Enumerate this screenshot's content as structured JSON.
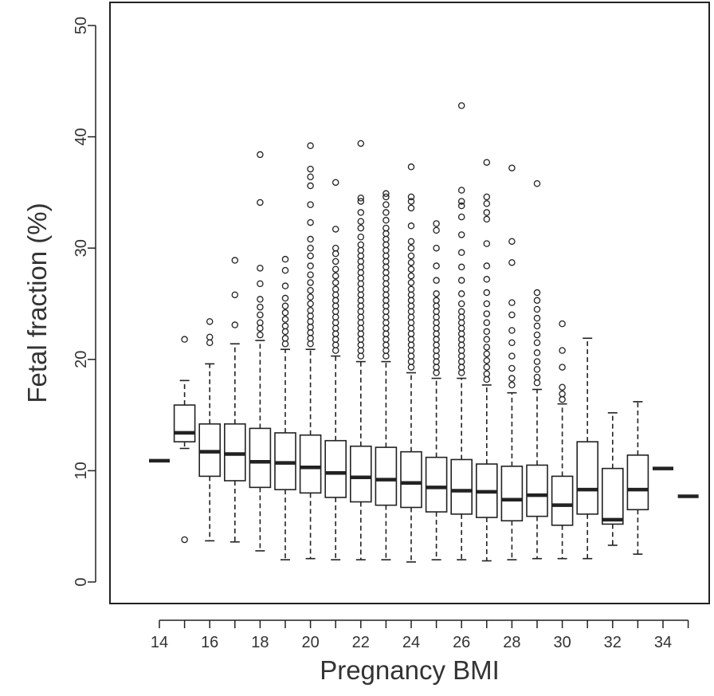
{
  "chart_data": {
    "type": "boxplot",
    "title": "",
    "xlabel": "Pregnancy BMI",
    "ylabel": "Fetal fraction (%)",
    "ylim": [
      0,
      50
    ],
    "yticks": [
      "0",
      "10",
      "20",
      "30",
      "40",
      "50"
    ],
    "xticks": [
      "14",
      "16",
      "18",
      "20",
      "22",
      "24",
      "26",
      "28",
      "30",
      "32",
      "34"
    ],
    "grid": false,
    "colors": {
      "line": "#222222",
      "frame": "#222222",
      "background": "#ffffff"
    },
    "boxes": [
      {
        "bmi": 14,
        "q1": 10.9,
        "median": 10.9,
        "q3": 10.9,
        "whisker_low": 10.9,
        "whisker_high": 10.9,
        "outliers": []
      },
      {
        "bmi": 15,
        "q1": 12.6,
        "median": 13.4,
        "q3": 15.9,
        "whisker_low": 12.0,
        "whisker_high": 18.1,
        "outliers": [
          21.8,
          3.8
        ]
      },
      {
        "bmi": 16,
        "q1": 9.5,
        "median": 11.7,
        "q3": 14.2,
        "whisker_low": 3.7,
        "whisker_high": 19.6,
        "outliers": [
          21.5,
          22.0,
          23.4
        ]
      },
      {
        "bmi": 17,
        "q1": 9.1,
        "median": 11.5,
        "q3": 14.2,
        "whisker_low": 3.6,
        "whisker_high": 21.4,
        "outliers": [
          23.1,
          25.8,
          28.9
        ]
      },
      {
        "bmi": 18,
        "q1": 8.5,
        "median": 10.8,
        "q3": 13.8,
        "whisker_low": 2.8,
        "whisker_high": 21.7,
        "outliers": [
          22.2,
          22.8,
          23.3,
          24.0,
          24.7,
          25.4,
          26.8,
          28.2,
          34.1,
          38.4
        ]
      },
      {
        "bmi": 19,
        "q1": 8.3,
        "median": 10.7,
        "q3": 13.4,
        "whisker_low": 2.0,
        "whisker_high": 20.9,
        "outliers": [
          21.4,
          21.9,
          22.5,
          23.0,
          23.6,
          24.2,
          24.8,
          25.5,
          26.6,
          28.0,
          29.0
        ]
      },
      {
        "bmi": 20,
        "q1": 8.0,
        "median": 10.3,
        "q3": 13.2,
        "whisker_low": 2.1,
        "whisker_high": 20.9,
        "outliers": [
          21.4,
          21.9,
          22.4,
          22.9,
          23.4,
          23.9,
          24.4,
          25.0,
          25.6,
          26.2,
          26.9,
          27.6,
          28.4,
          29.3,
          30.0,
          30.8,
          32.3,
          33.9,
          35.6,
          36.4,
          37.1,
          39.2
        ]
      },
      {
        "bmi": 21,
        "q1": 7.6,
        "median": 9.8,
        "q3": 12.7,
        "whisker_low": 2.0,
        "whisker_high": 20.3,
        "outliers": [
          20.8,
          21.3,
          21.8,
          22.3,
          22.8,
          23.3,
          23.8,
          24.3,
          24.8,
          25.3,
          25.8,
          26.3,
          26.9,
          27.5,
          28.1,
          28.8,
          29.5,
          30.0,
          31.7,
          35.9
        ]
      },
      {
        "bmi": 22,
        "q1": 7.2,
        "median": 9.4,
        "q3": 12.2,
        "whisker_low": 2.0,
        "whisker_high": 19.8,
        "outliers": [
          20.3,
          20.8,
          21.3,
          21.8,
          22.3,
          22.8,
          23.3,
          23.8,
          24.3,
          24.8,
          25.3,
          25.8,
          26.3,
          26.8,
          27.3,
          27.8,
          28.3,
          28.8,
          29.3,
          29.8,
          30.3,
          31.0,
          31.8,
          32.4,
          33.2,
          34.2,
          34.5,
          39.4
        ]
      },
      {
        "bmi": 23,
        "q1": 6.9,
        "median": 9.2,
        "q3": 12.1,
        "whisker_low": 2.0,
        "whisker_high": 19.8,
        "outliers": [
          20.3,
          20.8,
          21.3,
          21.8,
          22.3,
          22.8,
          23.3,
          23.8,
          24.3,
          24.8,
          25.3,
          25.8,
          26.3,
          26.8,
          27.3,
          27.8,
          28.3,
          28.8,
          29.3,
          29.8,
          30.3,
          30.8,
          31.3,
          31.8,
          32.5,
          33.2,
          33.9,
          34.6,
          34.9
        ]
      },
      {
        "bmi": 24,
        "q1": 6.7,
        "median": 8.9,
        "q3": 11.7,
        "whisker_low": 1.8,
        "whisker_high": 18.8,
        "outliers": [
          19.3,
          19.8,
          20.3,
          20.8,
          21.3,
          21.8,
          22.3,
          22.8,
          23.3,
          23.8,
          24.3,
          24.8,
          25.3,
          25.8,
          26.3,
          26.9,
          27.5,
          28.1,
          28.7,
          29.3,
          30.0,
          30.6,
          32.0,
          33.6,
          34.2,
          34.6,
          37.3
        ]
      },
      {
        "bmi": 25,
        "q1": 6.3,
        "median": 8.5,
        "q3": 11.2,
        "whisker_low": 2.0,
        "whisker_high": 18.3,
        "outliers": [
          18.8,
          19.3,
          19.8,
          20.3,
          20.8,
          21.3,
          21.8,
          22.3,
          22.8,
          23.3,
          23.8,
          24.3,
          24.8,
          25.3,
          25.9,
          27.1,
          28.4,
          30.0,
          31.6,
          32.2
        ]
      },
      {
        "bmi": 26,
        "q1": 6.1,
        "median": 8.2,
        "q3": 11.0,
        "whisker_low": 2.0,
        "whisker_high": 18.3,
        "outliers": [
          18.8,
          19.3,
          19.8,
          20.3,
          20.8,
          21.3,
          21.8,
          22.3,
          22.8,
          23.3,
          23.8,
          24.3,
          25.0,
          25.9,
          27.1,
          28.3,
          29.6,
          31.2,
          32.8,
          33.8,
          34.2,
          35.2,
          42.8
        ]
      },
      {
        "bmi": 27,
        "q1": 5.8,
        "median": 8.1,
        "q3": 10.6,
        "whisker_low": 1.9,
        "whisker_high": 17.7,
        "outliers": [
          18.2,
          18.7,
          19.3,
          19.9,
          20.5,
          21.1,
          21.8,
          22.5,
          23.3,
          24.1,
          25.0,
          26.0,
          27.2,
          28.4,
          30.4,
          32.6,
          33.2,
          34.0,
          34.6,
          37.7
        ]
      },
      {
        "bmi": 28,
        "q1": 5.5,
        "median": 7.4,
        "q3": 10.4,
        "whisker_low": 2.0,
        "whisker_high": 17.0,
        "outliers": [
          17.7,
          18.3,
          19.2,
          20.3,
          21.5,
          22.6,
          24.0,
          25.1,
          28.7,
          30.6,
          37.2
        ]
      },
      {
        "bmi": 29,
        "q1": 5.9,
        "median": 7.8,
        "q3": 10.5,
        "whisker_low": 2.1,
        "whisker_high": 17.3,
        "outliers": [
          17.9,
          18.4,
          19.1,
          19.8,
          20.6,
          21.5,
          22.2,
          23.0,
          23.7,
          24.5,
          25.3,
          26.0,
          35.8
        ]
      },
      {
        "bmi": 30,
        "q1": 5.1,
        "median": 6.9,
        "q3": 9.5,
        "whisker_low": 2.1,
        "whisker_high": 16.0,
        "outliers": [
          16.4,
          16.9,
          17.5,
          19.3,
          20.8,
          23.2
        ]
      },
      {
        "bmi": 31,
        "q1": 6.1,
        "median": 8.3,
        "q3": 12.6,
        "whisker_low": 2.1,
        "whisker_high": 21.9,
        "outliers": []
      },
      {
        "bmi": 32,
        "q1": 5.2,
        "median": 5.6,
        "q3": 10.2,
        "whisker_low": 3.3,
        "whisker_high": 15.2,
        "outliers": []
      },
      {
        "bmi": 33,
        "q1": 6.5,
        "median": 8.3,
        "q3": 11.4,
        "whisker_low": 2.5,
        "whisker_high": 16.2,
        "outliers": []
      },
      {
        "bmi": 34,
        "q1": 10.2,
        "median": 10.2,
        "q3": 10.2,
        "whisker_low": 10.2,
        "whisker_high": 10.2,
        "outliers": []
      },
      {
        "bmi": 35,
        "q1": 7.7,
        "median": 7.7,
        "q3": 7.7,
        "whisker_low": 7.7,
        "whisker_high": 7.7,
        "outliers": []
      }
    ]
  }
}
